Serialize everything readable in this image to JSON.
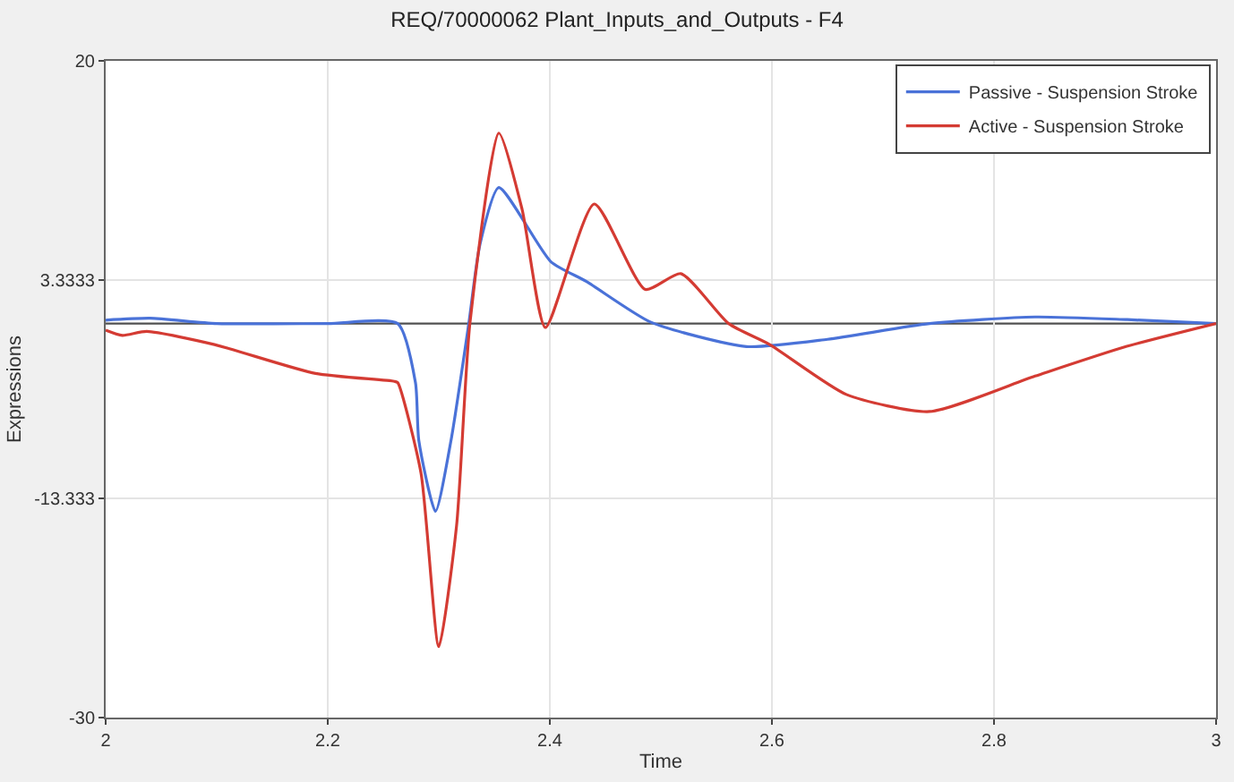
{
  "chart_data": {
    "type": "line",
    "title": "REQ/70000062 Plant_Inputs_and_Outputs - F4",
    "xlabel": "Time",
    "ylabel": "Expressions",
    "xlim": [
      2,
      3
    ],
    "xticks": [
      2,
      2.2,
      2.4,
      2.6,
      2.8,
      3
    ],
    "ylim": [
      -30,
      20
    ],
    "yticks": [
      20,
      3.3333,
      -13.333,
      -30
    ],
    "grid": true,
    "legend": "top right",
    "ref_lines": [
      {
        "axis": "y",
        "value": 0,
        "color": "#505050"
      }
    ],
    "series": [
      {
        "name": "Passive - Suspension Stroke",
        "color": "#4a72d8",
        "x": [
          2,
          2.04,
          2.1,
          2.2,
          2.263,
          2.279,
          2.282,
          2.297,
          2.311,
          2.327,
          2.337,
          2.354,
          2.401,
          2.433,
          2.491,
          2.577,
          2.65,
          2.742,
          2.837,
          2.92,
          3
        ],
        "values": [
          0.26,
          0.4,
          0,
          0,
          0,
          -4.5,
          -8.9,
          -14.3,
          -8.9,
          0,
          6,
          10.35,
          4.7,
          3.2,
          0.1,
          -1.75,
          -1.2,
          0,
          0.5,
          0.3,
          0
        ]
      },
      {
        "name": "Active - Suspension Stroke",
        "color": "#d43b33",
        "x": [
          2,
          2.015,
          2.037,
          2.098,
          2.189,
          2.26,
          2.263,
          2.284,
          2.3,
          2.316,
          2.328,
          2.354,
          2.375,
          2.396,
          2.44,
          2.486,
          2.518,
          2.561,
          2.598,
          2.667,
          2.742,
          2.837,
          2.917,
          3
        ],
        "values": [
          -0.5,
          -0.9,
          -0.6,
          -1.6,
          -3.8,
          -4.4,
          -4.5,
          -11.4,
          -24.6,
          -15.4,
          0,
          14.5,
          8.7,
          -0.3,
          9.1,
          2.6,
          3.8,
          0,
          -1.6,
          -5.4,
          -6.7,
          -4.0,
          -1.8,
          0
        ]
      }
    ]
  }
}
